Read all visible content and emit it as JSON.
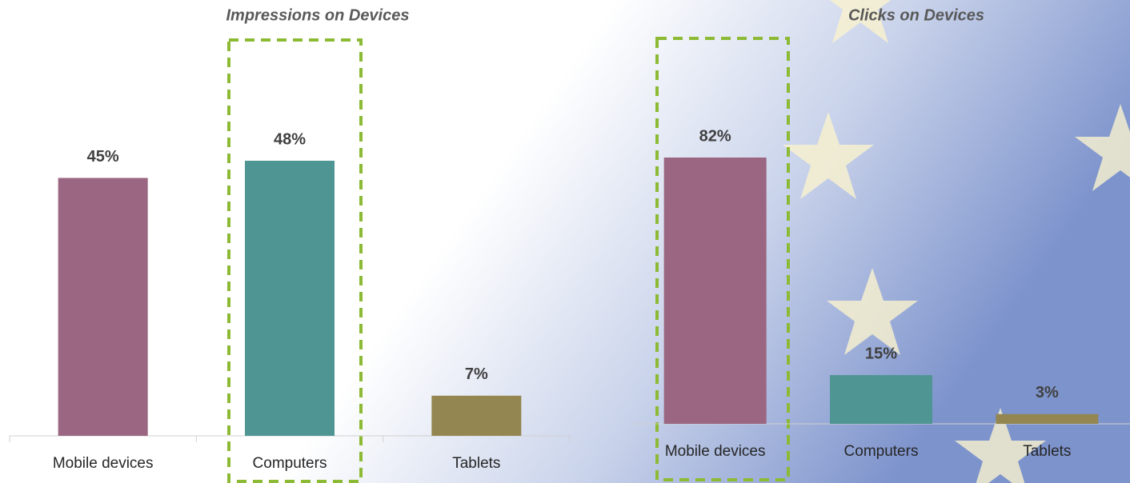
{
  "chart_data": [
    {
      "type": "bar",
      "title": "Impressions on Devices",
      "categories": [
        "Mobile devices",
        "Computers",
        "Tablets"
      ],
      "values": [
        45,
        48,
        7
      ],
      "value_labels": [
        "45%",
        "48%",
        "7%"
      ],
      "colors": [
        "#9b6681",
        "#4f9593",
        "#938651"
      ]
    },
    {
      "type": "bar",
      "title": "Clicks on Devices",
      "categories": [
        "Mobile devices",
        "Computers",
        "Tablets"
      ],
      "values": [
        82,
        15,
        3
      ],
      "value_labels": [
        "82%",
        "15%",
        "3%"
      ],
      "colors": [
        "#9b6681",
        "#4f9593",
        "#938651"
      ]
    }
  ]
}
